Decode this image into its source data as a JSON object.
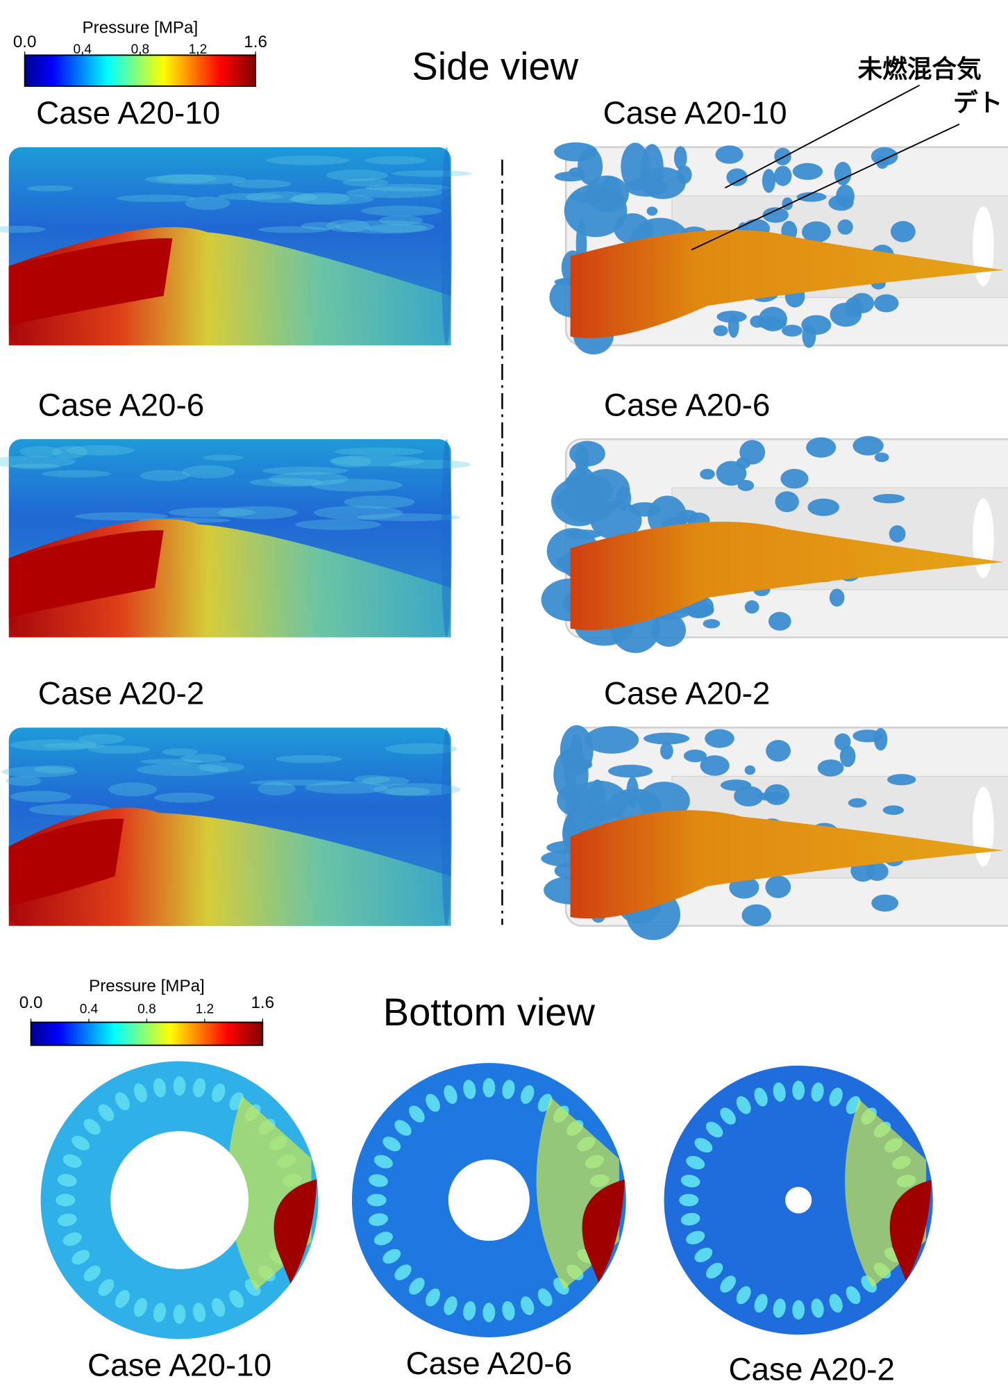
{
  "side_view": {
    "title": "Side view",
    "colorbar": {
      "title": "Pressure [MPa]",
      "range": [
        0,
        1.6
      ],
      "ticks": [
        {
          "value": 0,
          "label": "0.0"
        },
        0.4,
        0.8,
        1.2,
        1.6
      ]
    },
    "pressure_panels": [
      {
        "label": "Case A20-10"
      },
      {
        "label": "Case A20-6"
      },
      {
        "label": "Case A20-2"
      }
    ],
    "isosurface_panels": [
      {
        "label": "Case A20-10"
      },
      {
        "label": "Case A20-6"
      },
      {
        "label": "Case A20-2"
      }
    ],
    "annotations": [
      "未燃混合気",
      "デト"
    ]
  },
  "bottom_view": {
    "title": "Bottom view",
    "colorbar": {
      "title": "Pressure [MPa]",
      "range": [
        0,
        1.6
      ],
      "ticks": [
        {
          "value": 0,
          "label": "0.0"
        },
        0.4,
        0.8,
        1.2,
        1.6
      ]
    },
    "panels": [
      {
        "label": "Case A20-10"
      },
      {
        "label": "Case A20-6"
      },
      {
        "label": "Case A20-2"
      }
    ]
  }
}
